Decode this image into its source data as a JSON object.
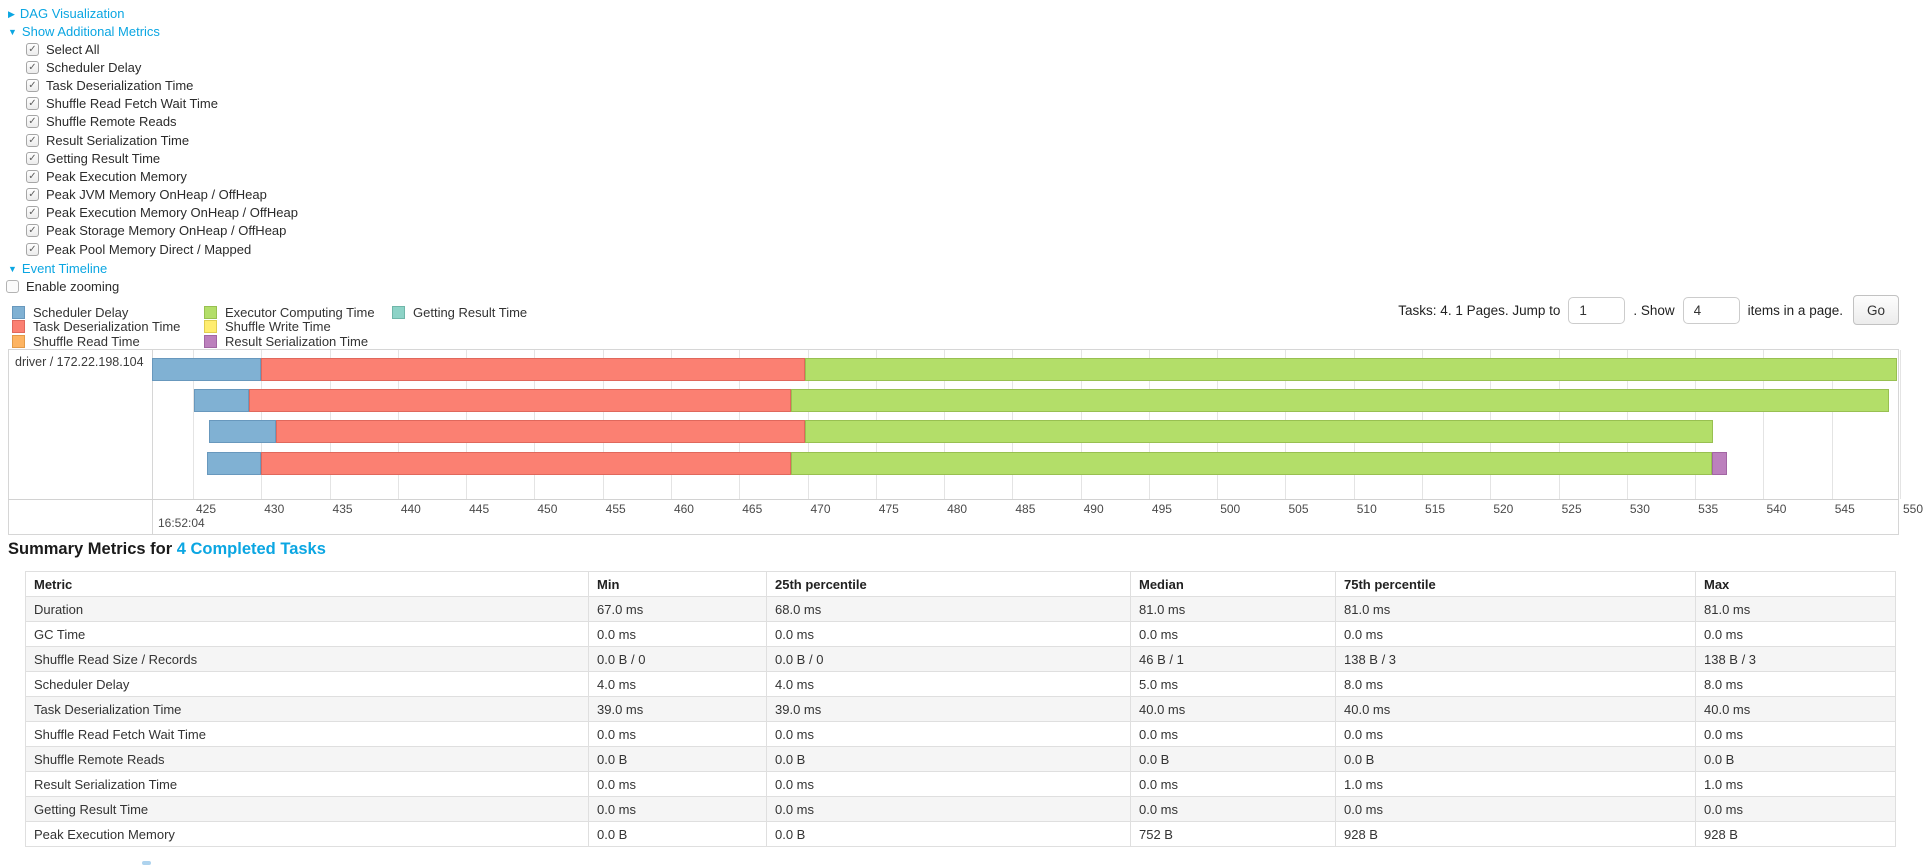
{
  "colors": {
    "link": "#0ba6e2"
  },
  "controls": {
    "dag_label": "DAG Visualization",
    "metrics_label": "Show Additional Metrics",
    "metric_checkboxes": [
      "Select All",
      "Scheduler Delay",
      "Task Deserialization Time",
      "Shuffle Read Fetch Wait Time",
      "Shuffle Remote Reads",
      "Result Serialization Time",
      "Getting Result Time",
      "Peak Execution Memory",
      "Peak JVM Memory OnHeap / OffHeap",
      "Peak Execution Memory OnHeap / OffHeap",
      "Peak Storage Memory OnHeap / OffHeap",
      "Peak Pool Memory Direct / Mapped"
    ],
    "event_timeline_label": "Event Timeline",
    "enable_zooming_label": "Enable zooming"
  },
  "legend": {
    "columns": [
      [
        {
          "label": "Scheduler Delay",
          "color": "#80B1D3",
          "border": "#6898BD"
        },
        {
          "label": "Task Deserialization Time",
          "color": "#FB8072",
          "border": "#E0685C"
        },
        {
          "label": "Shuffle Read Time",
          "color": "#FDB462",
          "border": "#E29A48"
        }
      ],
      [
        {
          "label": "Executor Computing Time",
          "color": "#B3DE69",
          "border": "#98C051"
        },
        {
          "label": "Shuffle Write Time",
          "color": "#FFED6F",
          "border": "#E0CE50"
        },
        {
          "label": "Result Serialization Time",
          "color": "#BC80BD",
          "border": "#A266A3"
        }
      ],
      [
        {
          "label": "Getting Result Time",
          "color": "#8DD3C7",
          "border": "#70B6A9"
        }
      ]
    ]
  },
  "pagination": {
    "prefix": "Tasks: 4. 1 Pages. Jump to",
    "jump_value": "1",
    "mid": ". Show",
    "show_value": "4",
    "suffix": "items in a page.",
    "go_label": "Go"
  },
  "timeline": {
    "group_label": "driver / 172.22.198.104",
    "axis": {
      "start": 425,
      "end": 550,
      "step": 5,
      "domain_min": 422,
      "domain_max": 550,
      "time_label": "16:52:04"
    },
    "colors": {
      "scheduler": {
        "fill": "#80B1D3",
        "stroke": "#6898BD"
      },
      "deserialization": {
        "fill": "#FB8072",
        "stroke": "#E0685C"
      },
      "compute": {
        "fill": "#B3DE69",
        "stroke": "#98C051"
      },
      "result_serialization": {
        "fill": "#BC80BD",
        "stroke": "#A266A3"
      }
    },
    "tasks": [
      {
        "segments": [
          {
            "name": "scheduler",
            "start": 422.0,
            "end": 430.0
          },
          {
            "name": "deserialization",
            "start": 430.0,
            "end": 469.8
          },
          {
            "name": "compute",
            "start": 469.8,
            "end": 549.8
          }
        ]
      },
      {
        "segments": [
          {
            "name": "scheduler",
            "start": 425.1,
            "end": 429.1
          },
          {
            "name": "deserialization",
            "start": 429.1,
            "end": 468.8
          },
          {
            "name": "compute",
            "start": 468.8,
            "end": 549.2
          }
        ]
      },
      {
        "segments": [
          {
            "name": "scheduler",
            "start": 426.2,
            "end": 431.1
          },
          {
            "name": "deserialization",
            "start": 431.1,
            "end": 469.8
          },
          {
            "name": "compute",
            "start": 469.8,
            "end": 536.3
          }
        ]
      },
      {
        "segments": [
          {
            "name": "scheduler",
            "start": 426.0,
            "end": 430.0
          },
          {
            "name": "deserialization",
            "start": 430.0,
            "end": 468.8
          },
          {
            "name": "compute",
            "start": 468.8,
            "end": 536.2
          },
          {
            "name": "result_serialization",
            "start": 536.2,
            "end": 537.3
          }
        ]
      }
    ]
  },
  "summary": {
    "title_prefix": "Summary Metrics for ",
    "title_link": "4 Completed Tasks",
    "table": {
      "headers": [
        "Metric",
        "Min",
        "25th percentile",
        "Median",
        "75th percentile",
        "Max"
      ],
      "rows": [
        {
          "metric": "Duration",
          "values": [
            "67.0 ms",
            "68.0 ms",
            "81.0 ms",
            "81.0 ms",
            "81.0 ms"
          ]
        },
        {
          "metric": "GC Time",
          "values": [
            "0.0 ms",
            "0.0 ms",
            "0.0 ms",
            "0.0 ms",
            "0.0 ms"
          ]
        },
        {
          "metric": "Shuffle Read Size / Records",
          "values": [
            "0.0 B / 0",
            "0.0 B / 0",
            "46 B / 1",
            "138 B / 3",
            "138 B / 3"
          ]
        },
        {
          "metric": "Scheduler Delay",
          "values": [
            "4.0 ms",
            "4.0 ms",
            "5.0 ms",
            "8.0 ms",
            "8.0 ms"
          ]
        },
        {
          "metric": "Task Deserialization Time",
          "values": [
            "39.0 ms",
            "39.0 ms",
            "40.0 ms",
            "40.0 ms",
            "40.0 ms"
          ]
        },
        {
          "metric": "Shuffle Read Fetch Wait Time",
          "values": [
            "0.0 ms",
            "0.0 ms",
            "0.0 ms",
            "0.0 ms",
            "0.0 ms"
          ]
        },
        {
          "metric": "Shuffle Remote Reads",
          "values": [
            "0.0 B",
            "0.0 B",
            "0.0 B",
            "0.0 B",
            "0.0 B"
          ]
        },
        {
          "metric": "Result Serialization Time",
          "values": [
            "0.0 ms",
            "0.0 ms",
            "0.0 ms",
            "1.0 ms",
            "1.0 ms"
          ]
        },
        {
          "metric": "Getting Result Time",
          "values": [
            "0.0 ms",
            "0.0 ms",
            "0.0 ms",
            "0.0 ms",
            "0.0 ms"
          ]
        },
        {
          "metric": "Peak Execution Memory",
          "values": [
            "0.0 B",
            "0.0 B",
            "752 B",
            "928 B",
            "928 B"
          ]
        }
      ]
    }
  }
}
